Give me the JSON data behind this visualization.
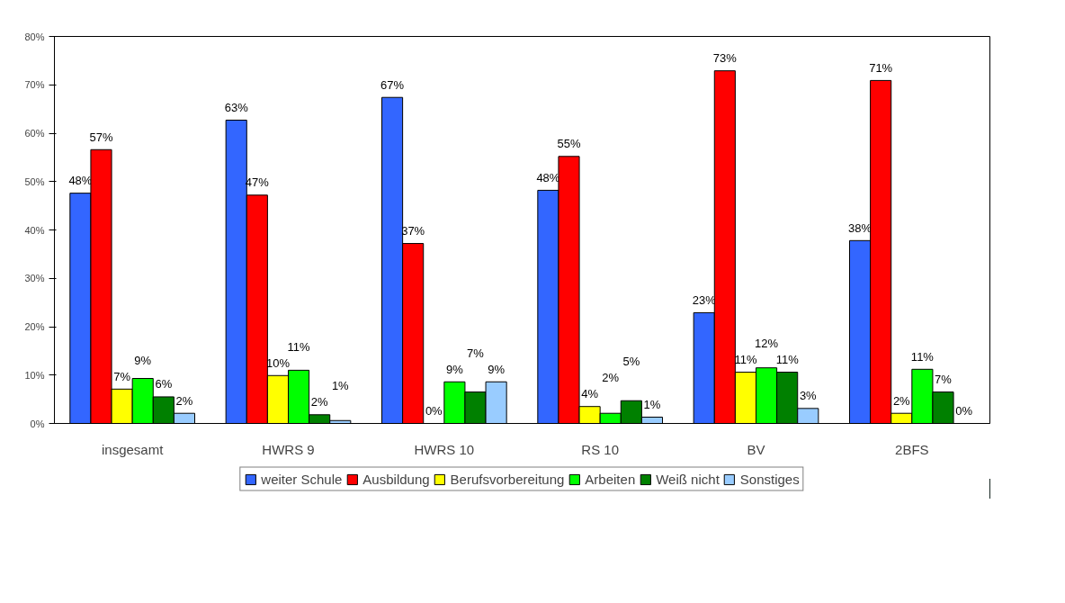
{
  "chart_data": {
    "type": "bar",
    "categories": [
      "insgesamt",
      "HWRS 9",
      "HWRS 10",
      "RS 10",
      "BV",
      "2BFS"
    ],
    "series": [
      {
        "name": "weiter Schule",
        "color": "#3366ff",
        "values": [
          47.6,
          62.7,
          67.4,
          48.2,
          22.9,
          37.8
        ],
        "value_labels": [
          "48%",
          "63%",
          "67%",
          "48%",
          "23%",
          "38%"
        ]
      },
      {
        "name": "Ausbildung",
        "color": "#ff0000",
        "values": [
          56.6,
          47.2,
          37.2,
          55.2,
          72.9,
          70.9
        ],
        "value_labels": [
          "57%",
          "47%",
          "37%",
          "55%",
          "73%",
          "71%"
        ]
      },
      {
        "name": "Berufsvorbereitung",
        "color": "#ffff00",
        "values": [
          7.1,
          9.9,
          0,
          3.5,
          10.6,
          2.1
        ],
        "value_labels": [
          "7%",
          "10%",
          "0%",
          "4%",
          "11%",
          "2%"
        ]
      },
      {
        "name": "Arbeiten",
        "color": "#00ff00",
        "values": [
          9.3,
          11.0,
          8.6,
          2.1,
          11.5,
          11.2
        ],
        "value_labels": [
          "9%",
          "11%",
          "9%",
          "2%",
          "12%",
          "11%"
        ]
      },
      {
        "name": "Weiß nicht",
        "color": "#008000",
        "values": [
          5.5,
          1.8,
          6.5,
          4.7,
          10.6,
          6.5
        ],
        "value_labels": [
          "6%",
          "2%",
          "7%",
          "5%",
          "11%",
          "7%"
        ]
      },
      {
        "name": "Sonstiges",
        "color": "#99ccff",
        "values": [
          2.1,
          0.6,
          8.6,
          1.3,
          3.1,
          0
        ],
        "value_labels": [
          "2%",
          "1%",
          "9%",
          "1%",
          "3%",
          "0%"
        ]
      }
    ],
    "ylim": [
      0,
      80
    ],
    "yticks": [
      {
        "value": 0,
        "label": "0%"
      },
      {
        "value": 10,
        "label": "10%"
      },
      {
        "value": 20,
        "label": "20%"
      },
      {
        "value": 30,
        "label": "30%"
      },
      {
        "value": 40,
        "label": "40%"
      },
      {
        "value": 50,
        "label": "50%"
      },
      {
        "value": 60,
        "label": "60%"
      },
      {
        "value": 70,
        "label": "70%"
      },
      {
        "value": 80,
        "label": "80%"
      }
    ],
    "grid": false,
    "legend": "bottom"
  }
}
